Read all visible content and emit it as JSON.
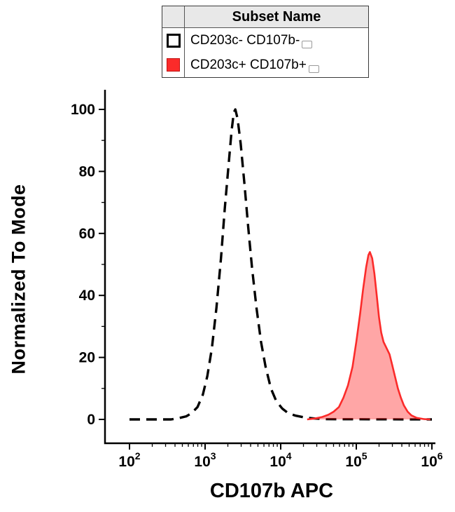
{
  "chart_data": {
    "type": "line",
    "subtype": "flow-cytometry-histogram-overlay",
    "title": "",
    "xlabel": "CD107b APC",
    "ylabel": "Normalized To Mode",
    "x_scale": "log10",
    "xlim_log10": [
      2,
      6
    ],
    "ylim": [
      0,
      100
    ],
    "x_ticks_exponents": [
      2,
      3,
      4,
      5,
      6
    ],
    "x_tick_base": "10",
    "y_ticks": [
      0,
      20,
      40,
      60,
      80,
      100
    ],
    "y_minor_ticks": [
      10,
      30,
      50,
      70,
      90
    ],
    "grid": false,
    "legend": {
      "position": "top-center",
      "header": "Subset Name",
      "entries": [
        {
          "label": "CD203c- CD107b-",
          "swatch": "open",
          "line_style": "dashed",
          "color": "#000000"
        },
        {
          "label": "CD203c+ CD107b+",
          "swatch": "filled",
          "line_style": "solid",
          "color": "#fb2b2a"
        }
      ]
    },
    "series": [
      {
        "name": "CD203c- CD107b-",
        "style": "dashed",
        "color": "#000000",
        "fill": "none",
        "peak": {
          "x": 2500,
          "y": 100
        },
        "points_log10x_y": [
          [
            2.0,
            0
          ],
          [
            2.55,
            0
          ],
          [
            2.65,
            0.4
          ],
          [
            2.75,
            1
          ],
          [
            2.82,
            2
          ],
          [
            2.9,
            4
          ],
          [
            2.97,
            8
          ],
          [
            3.03,
            14
          ],
          [
            3.09,
            23
          ],
          [
            3.15,
            36
          ],
          [
            3.21,
            52
          ],
          [
            3.26,
            68
          ],
          [
            3.31,
            82
          ],
          [
            3.35,
            93
          ],
          [
            3.38,
            99
          ],
          [
            3.4,
            100
          ],
          [
            3.43,
            97
          ],
          [
            3.47,
            89
          ],
          [
            3.52,
            76
          ],
          [
            3.57,
            62
          ],
          [
            3.62,
            49
          ],
          [
            3.68,
            36
          ],
          [
            3.74,
            25
          ],
          [
            3.8,
            17
          ],
          [
            3.87,
            10
          ],
          [
            3.94,
            6
          ],
          [
            4.02,
            3.5
          ],
          [
            4.1,
            2
          ],
          [
            4.2,
            1.2
          ],
          [
            4.32,
            0.6
          ],
          [
            4.45,
            0.3
          ],
          [
            4.6,
            0.1
          ],
          [
            6.0,
            0
          ]
        ]
      },
      {
        "name": "CD203c+ CD107b+",
        "style": "solid",
        "color": "#fb2b2a",
        "fill": "rgba(255,42,42,0.42)",
        "peak": {
          "x": 140000,
          "y": 54
        },
        "points_log10x_y": [
          [
            4.35,
            0
          ],
          [
            4.45,
            0.3
          ],
          [
            4.55,
            0.8
          ],
          [
            4.63,
            1.5
          ],
          [
            4.7,
            2.5
          ],
          [
            4.77,
            4
          ],
          [
            4.83,
            7
          ],
          [
            4.89,
            11
          ],
          [
            4.95,
            17
          ],
          [
            5.0,
            25
          ],
          [
            5.05,
            34
          ],
          [
            5.09,
            42
          ],
          [
            5.13,
            49
          ],
          [
            5.16,
            53
          ],
          [
            5.18,
            54
          ],
          [
            5.21,
            52
          ],
          [
            5.24,
            47
          ],
          [
            5.27,
            40
          ],
          [
            5.3,
            33
          ],
          [
            5.33,
            28
          ],
          [
            5.36,
            25
          ],
          [
            5.4,
            23
          ],
          [
            5.44,
            21
          ],
          [
            5.47,
            18
          ],
          [
            5.51,
            14
          ],
          [
            5.55,
            10
          ],
          [
            5.59,
            7
          ],
          [
            5.63,
            4.5
          ],
          [
            5.68,
            2.5
          ],
          [
            5.73,
            1.3
          ],
          [
            5.8,
            0.5
          ],
          [
            5.9,
            0.1
          ],
          [
            5.98,
            0
          ]
        ]
      }
    ]
  }
}
